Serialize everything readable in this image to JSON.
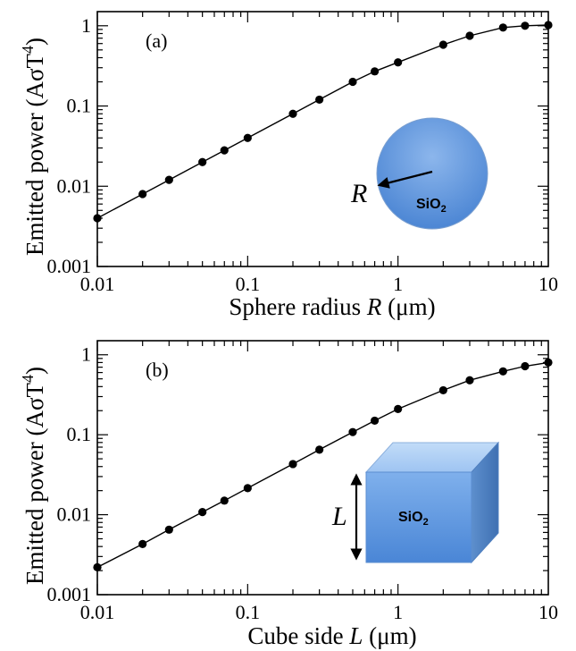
{
  "chart_data": [
    {
      "type": "line",
      "panel_label": "(a)",
      "xlabel": {
        "prefix": "Sphere radius ",
        "var": "R",
        "suffix": " (μm)"
      },
      "ylabel": "Emitted power (AσT",
      "ylabel_sup": "4",
      "ylabel_close": ")",
      "xscale": "log",
      "yscale": "log",
      "xlim": [
        0.01,
        10
      ],
      "ylim": [
        0.001,
        1.5
      ],
      "xticks": [
        0.01,
        0.1,
        1,
        10
      ],
      "xtick_labels": [
        "0.01",
        "0.1",
        "1",
        "10"
      ],
      "yticks": [
        0.001,
        0.01,
        0.1,
        1
      ],
      "ytick_labels": [
        "0.001",
        "0.01",
        "0.1",
        "1"
      ],
      "series": [
        {
          "x": [
            0.01,
            0.02,
            0.03,
            0.05,
            0.07,
            0.1,
            0.2,
            0.3,
            0.5,
            0.7,
            1,
            2,
            3,
            5,
            7,
            10
          ],
          "y": [
            0.004,
            0.008,
            0.012,
            0.02,
            0.028,
            0.04,
            0.08,
            0.12,
            0.2,
            0.27,
            0.35,
            0.58,
            0.75,
            0.95,
            1.0,
            1.02
          ]
        }
      ],
      "inset": {
        "shape": "sphere",
        "symbol": "R",
        "material": "SiO",
        "material_sub": "2"
      }
    },
    {
      "type": "line",
      "panel_label": "(b)",
      "xlabel": {
        "prefix": "Cube side ",
        "var": "L",
        "suffix": " (μm)"
      },
      "ylabel": "Emitted power (AσT",
      "ylabel_sup": "4",
      "ylabel_close": ")",
      "xscale": "log",
      "yscale": "log",
      "xlim": [
        0.01,
        10
      ],
      "ylim": [
        0.001,
        1.5
      ],
      "xticks": [
        0.01,
        0.1,
        1,
        10
      ],
      "xtick_labels": [
        "0.01",
        "0.1",
        "1",
        "10"
      ],
      "yticks": [
        0.001,
        0.01,
        0.1,
        1
      ],
      "ytick_labels": [
        "0.001",
        "0.01",
        "0.1",
        "1"
      ],
      "series": [
        {
          "x": [
            0.01,
            0.02,
            0.03,
            0.05,
            0.07,
            0.1,
            0.2,
            0.3,
            0.5,
            0.7,
            1,
            2,
            3,
            5,
            7,
            10
          ],
          "y": [
            0.0022,
            0.0043,
            0.0065,
            0.0108,
            0.015,
            0.0215,
            0.043,
            0.065,
            0.108,
            0.15,
            0.21,
            0.36,
            0.48,
            0.62,
            0.72,
            0.8
          ]
        }
      ],
      "inset": {
        "shape": "cube",
        "symbol": "L",
        "material": "SiO",
        "material_sub": "2"
      }
    }
  ]
}
